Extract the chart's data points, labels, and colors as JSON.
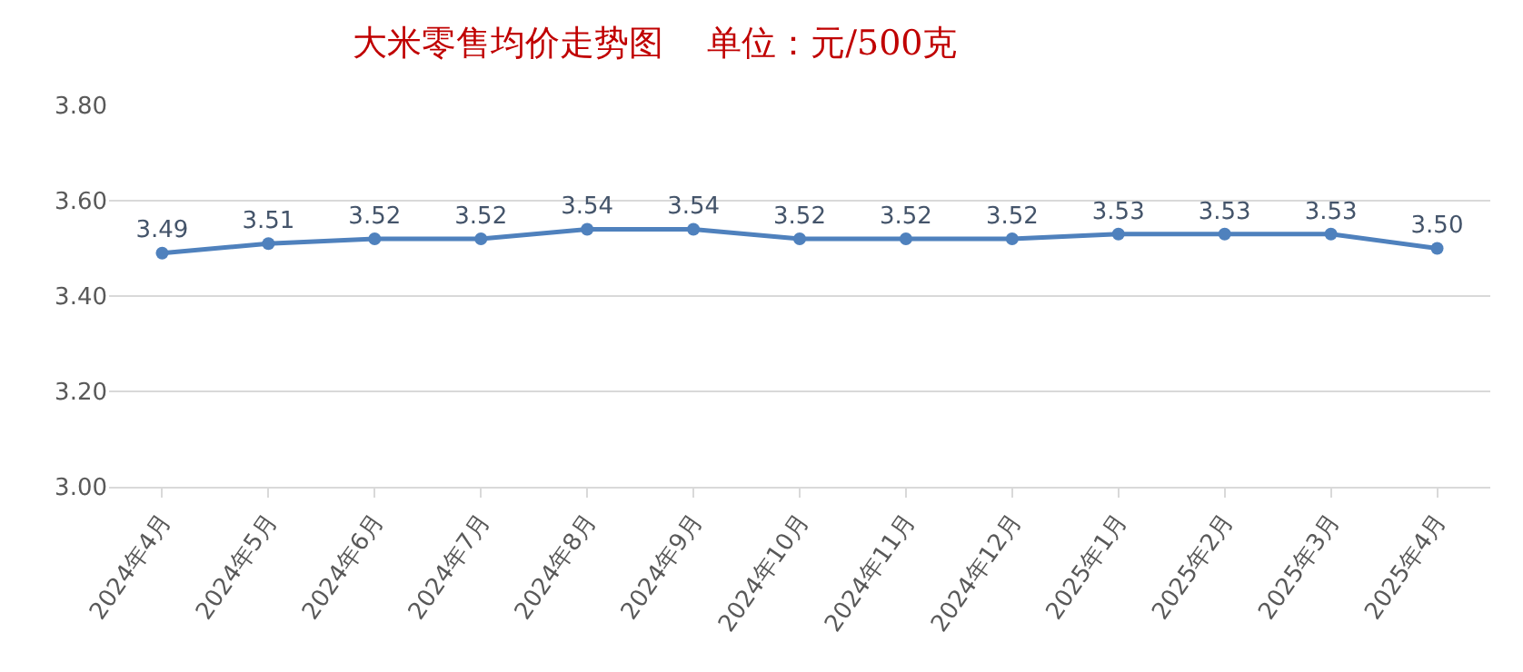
{
  "chart_data": {
    "type": "line",
    "title": "大米零售均价走势图    单位：元/500克",
    "categories": [
      "2024年4月",
      "2024年5月",
      "2024年6月",
      "2024年7月",
      "2024年8月",
      "2024年9月",
      "2024年10月",
      "2024年11月",
      "2024年12月",
      "2025年1月",
      "2025年2月",
      "2025年3月",
      "2025年4月"
    ],
    "series": [
      {
        "color": "#4f81bd",
        "values": [
          3.49,
          3.51,
          3.52,
          3.52,
          3.54,
          3.54,
          3.52,
          3.52,
          3.52,
          3.53,
          3.53,
          3.53,
          3.5
        ],
        "value_labels": [
          "3.49",
          "3.51",
          "3.52",
          "3.52",
          "3.54",
          "3.54",
          "3.52",
          "3.52",
          "3.52",
          "3.53",
          "3.53",
          "3.53",
          "3.50"
        ]
      }
    ],
    "ylim": [
      3.0,
      3.8
    ],
    "yticks": [
      {
        "value": 3.0,
        "label": "3.00"
      },
      {
        "value": 3.2,
        "label": "3.20"
      },
      {
        "value": 3.4,
        "label": "3.40"
      },
      {
        "value": 3.6,
        "label": "3.60"
      },
      {
        "value": 3.8,
        "label": "3.80"
      }
    ],
    "grid": "y",
    "marker": "circle",
    "line_style": "solid",
    "legend": false
  }
}
